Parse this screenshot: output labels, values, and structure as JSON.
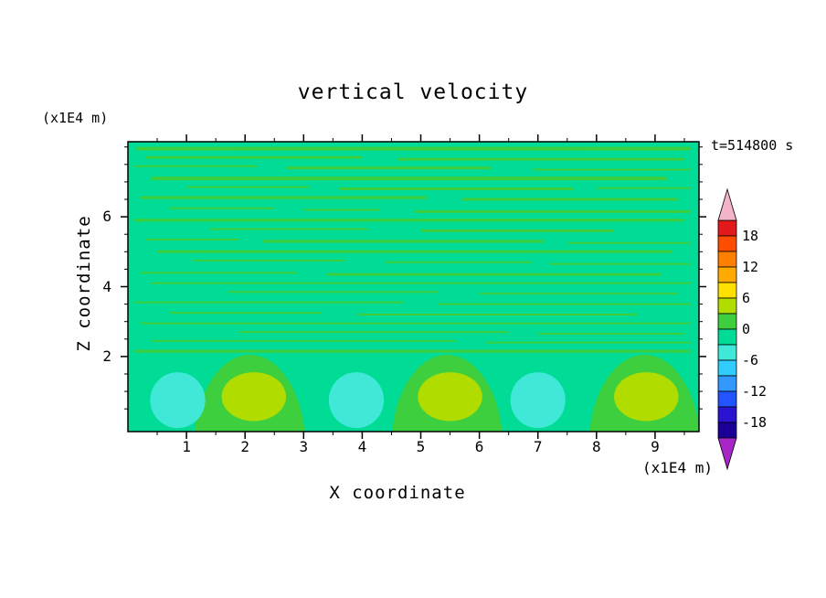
{
  "title": "vertical velocity",
  "time_label": "t=514800 s",
  "y_axis_unit": "(x1E4 m)",
  "x_axis_unit": "(x1E4 m)",
  "x_axis_label": "X coordinate",
  "y_axis_label": "Z coordinate",
  "x_ticks": [
    1,
    2,
    3,
    4,
    5,
    6,
    7,
    8,
    9
  ],
  "y_ticks": [
    6,
    4,
    2
  ],
  "colorbar": {
    "tick_labels": [
      "18",
      "12",
      "6",
      "0",
      "-6",
      "-12",
      "-18"
    ],
    "segment_colors_top_to_bottom": [
      "#e31a1c",
      "#ff4d00",
      "#ff7f00",
      "#ffaa00",
      "#ffe000",
      "#b0dc00",
      "#3ecf3e",
      "#00dc96",
      "#40e8d8",
      "#33ccff",
      "#3399ff",
      "#2255ff",
      "#2a14d2",
      "#1a0096"
    ],
    "over_arrow_color": "#f2b4c6",
    "under_arrow_color": "#a825c8"
  },
  "chart_data": {
    "type": "heatmap",
    "title": "vertical velocity",
    "xlabel": "X coordinate (x1E4 m)",
    "ylabel": "Z coordinate (x1E4 m)",
    "time_annotation": "t=514800 s",
    "xlim": [
      0,
      9.75
    ],
    "ylim": [
      0,
      8.1
    ],
    "x_tick_values": [
      1,
      2,
      3,
      4,
      5,
      6,
      7,
      8,
      9
    ],
    "y_tick_values": [
      2,
      4,
      6
    ],
    "contour_levels": [
      -21,
      -18,
      -15,
      -12,
      -9,
      -6,
      -3,
      0,
      3,
      6,
      9,
      12,
      15,
      18,
      21
    ],
    "colorbar_labeled_levels": [
      18,
      12,
      6,
      0,
      -6,
      -12,
      -18
    ],
    "background_band_value": "-3 to 0",
    "streak_band_value": "0 to 3",
    "legend_position": "right colorbar with over/under arrows",
    "grid": false,
    "streaks": [
      [
        0.15,
        9.6,
        7.95,
        4
      ],
      [
        0.3,
        4.0,
        7.7,
        3
      ],
      [
        4.6,
        9.5,
        7.65,
        3
      ],
      [
        0.1,
        2.2,
        7.45,
        2
      ],
      [
        2.7,
        6.2,
        7.4,
        3
      ],
      [
        6.9,
        9.6,
        7.35,
        2
      ],
      [
        0.4,
        9.2,
        7.1,
        4
      ],
      [
        1.0,
        3.1,
        6.85,
        2
      ],
      [
        3.6,
        7.6,
        6.8,
        3
      ],
      [
        8.0,
        9.6,
        6.82,
        2
      ],
      [
        0.2,
        5.1,
        6.55,
        3
      ],
      [
        5.7,
        9.4,
        6.5,
        3
      ],
      [
        0.7,
        2.5,
        6.25,
        2
      ],
      [
        3.0,
        4.3,
        6.2,
        2
      ],
      [
        4.9,
        9.6,
        6.15,
        3
      ],
      [
        0.1,
        9.5,
        5.9,
        3
      ],
      [
        1.4,
        4.1,
        5.65,
        2
      ],
      [
        5.0,
        8.3,
        5.6,
        3
      ],
      [
        0.3,
        1.9,
        5.35,
        2
      ],
      [
        2.3,
        7.1,
        5.3,
        3
      ],
      [
        7.5,
        9.6,
        5.25,
        2
      ],
      [
        0.5,
        9.3,
        5.0,
        3
      ],
      [
        1.1,
        3.7,
        4.75,
        2
      ],
      [
        4.4,
        6.9,
        4.7,
        2
      ],
      [
        7.2,
        9.6,
        4.65,
        2
      ],
      [
        0.2,
        2.9,
        4.4,
        2
      ],
      [
        3.4,
        9.1,
        4.35,
        3
      ],
      [
        0.4,
        9.6,
        4.1,
        2
      ],
      [
        1.7,
        5.3,
        3.85,
        2
      ],
      [
        6.0,
        9.4,
        3.8,
        2
      ],
      [
        0.1,
        4.7,
        3.55,
        2
      ],
      [
        5.3,
        9.6,
        3.5,
        2
      ],
      [
        0.7,
        3.3,
        3.25,
        2
      ],
      [
        3.9,
        8.7,
        3.2,
        2
      ],
      [
        0.2,
        9.6,
        2.95,
        2
      ],
      [
        1.9,
        6.5,
        2.7,
        2
      ],
      [
        7.0,
        9.5,
        2.65,
        2
      ],
      [
        0.4,
        5.6,
        2.45,
        2
      ],
      [
        6.1,
        9.6,
        2.4,
        2
      ],
      [
        0.1,
        9.6,
        2.15,
        3
      ]
    ],
    "updraft_cells": [
      {
        "x": 2.08,
        "half_width": 0.95,
        "core_x": 2.15,
        "core_value_band": "3 to 6"
      },
      {
        "x": 5.45,
        "half_width": 0.95,
        "core_x": 5.5,
        "core_value_band": "3 to 6"
      },
      {
        "x": 8.82,
        "half_width": 0.95,
        "core_x": 8.85,
        "core_value_band": "3 to 6"
      }
    ],
    "downdraft_cells": [
      {
        "x": 0.85,
        "value_band": "-6 to -3"
      },
      {
        "x": 3.9,
        "value_band": "-6 to -3"
      },
      {
        "x": 7.0,
        "value_band": "-6 to -3"
      }
    ]
  }
}
